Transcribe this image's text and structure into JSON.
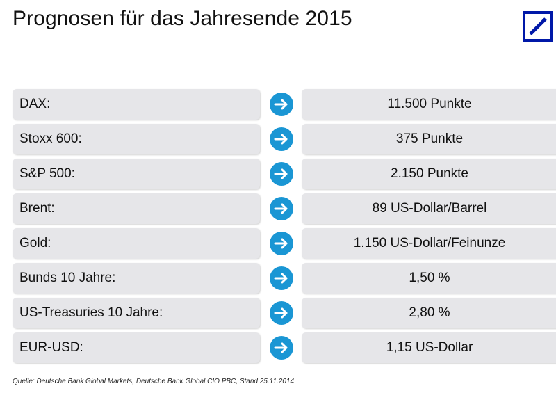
{
  "page": {
    "title": "Prognosen für das Jahresende 2015",
    "logo_icon": "deutsche-bank-logo",
    "brand_color": "#0018a8",
    "arrow_color": "#1a96d4"
  },
  "rows": [
    {
      "label": "DAX:",
      "value": "11.500 Punkte"
    },
    {
      "label": "Stoxx 600:",
      "value": "375 Punkte"
    },
    {
      "label": "S&P 500:",
      "value": "2.150 Punkte"
    },
    {
      "label": "Brent:",
      "value": "89 US-Dollar/Barrel"
    },
    {
      "label": "Gold:",
      "value": "1.150 US-Dollar/Feinunze"
    },
    {
      "label": "Bunds 10 Jahre:",
      "value": "1,50 %"
    },
    {
      "label": "US-Treasuries 10 Jahre:",
      "value": "2,80 %"
    },
    {
      "label": "EUR-USD:",
      "value": "1,15 US-Dollar"
    }
  ],
  "footer": {
    "source": "Quelle: Deutsche Bank Global Markets, Deutsche Bank Global CIO PBC, Stand 25.11.2014"
  }
}
